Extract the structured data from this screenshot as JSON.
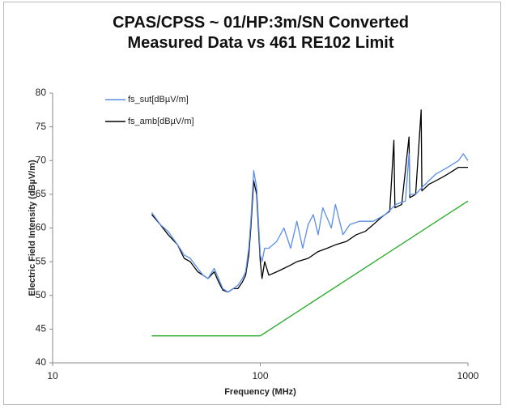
{
  "chart_data": {
    "type": "line",
    "title": "CPAS/CPSS ~ 01/HP:3m/SN Converted Measured Data vs 461 RE102 Limit",
    "x_label": "Frequency (MHz)",
    "y_label": "Electric Field Intensity (dBµV/m)",
    "x_log": true,
    "xlim": [
      10,
      1000
    ],
    "xticks": [
      10,
      100,
      1000
    ],
    "ylim": [
      40,
      80
    ],
    "yticks": [
      40,
      45,
      50,
      55,
      60,
      65,
      70,
      75,
      80
    ],
    "grid": false,
    "legend": "top-left",
    "series": [
      {
        "name": "fs_sut[dBµV/m]",
        "color": "#5b8ee6",
        "x": [
          30,
          33,
          36,
          40,
          43,
          46,
          50,
          53,
          56,
          60,
          63,
          66,
          70,
          74,
          78,
          82,
          85,
          88,
          90,
          93,
          96,
          100,
          102,
          105,
          110,
          120,
          130,
          140,
          150,
          160,
          170,
          180,
          190,
          200,
          220,
          230,
          250,
          270,
          300,
          350,
          400,
          450,
          500,
          520,
          525,
          560,
          600,
          700,
          800,
          900,
          950,
          1000
        ],
        "values": [
          62.3,
          60.5,
          59.5,
          57.5,
          56,
          55.5,
          54,
          53,
          52.5,
          54,
          52.5,
          51,
          50.5,
          51,
          51.5,
          52.5,
          53.5,
          57,
          61,
          68.5,
          66,
          56,
          55,
          57,
          57,
          58,
          60,
          57,
          61,
          57,
          60.5,
          62,
          59,
          63,
          60,
          63.5,
          59,
          60.5,
          61,
          61,
          62,
          63.5,
          64,
          71,
          65,
          65,
          66,
          68,
          69,
          70,
          71,
          70
        ]
      },
      {
        "name": "fs_amb[dBµV/m]",
        "color": "#000000",
        "x": [
          30,
          33,
          36,
          40,
          43,
          46,
          50,
          53,
          56,
          60,
          63,
          66,
          70,
          74,
          78,
          82,
          85,
          88,
          90,
          93,
          96,
          100,
          102,
          105,
          110,
          120,
          130,
          140,
          150,
          170,
          190,
          210,
          230,
          260,
          290,
          320,
          350,
          380,
          420,
          440,
          445,
          480,
          520,
          525,
          560,
          595,
          600,
          650,
          700,
          750,
          800,
          850,
          900,
          950,
          1000
        ],
        "values": [
          62,
          60.5,
          59,
          57.5,
          55.5,
          55,
          53.5,
          53,
          52.5,
          53.5,
          52,
          50.8,
          50.5,
          51,
          51,
          52,
          53,
          56,
          60,
          67,
          65,
          55,
          52.5,
          55,
          53,
          53.5,
          54,
          54.5,
          55,
          55.5,
          56.5,
          57,
          57.5,
          58,
          59,
          59.5,
          60.5,
          61.5,
          62.5,
          73,
          63,
          63.5,
          73.5,
          64.5,
          65,
          77.5,
          65.5,
          66.5,
          67,
          67.5,
          68,
          68.5,
          69,
          69,
          69
        ]
      },
      {
        "color": "#22aa22",
        "x": [
          30,
          100,
          1000
        ],
        "values": [
          44,
          44,
          64
        ]
      }
    ]
  }
}
